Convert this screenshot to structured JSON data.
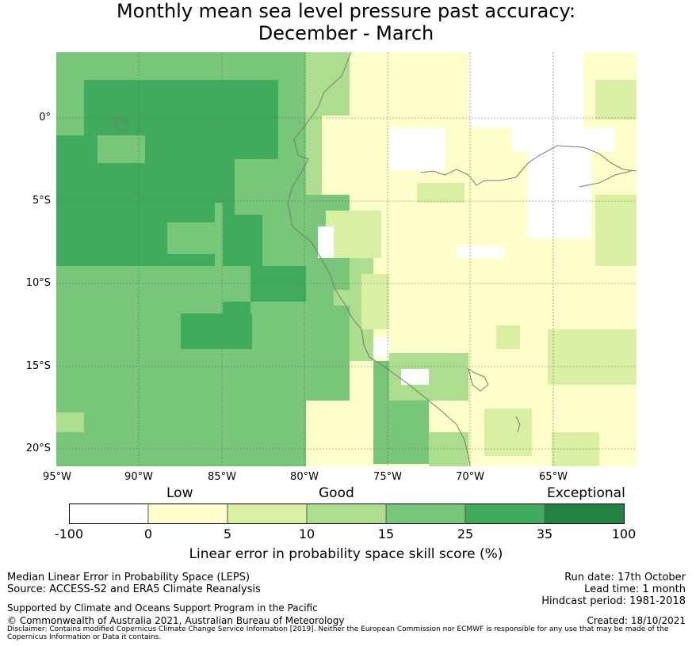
{
  "title": {
    "line1": "Monthly mean sea level pressure past accuracy:",
    "line2": "December - March"
  },
  "map": {
    "lat_labels": [
      "0°",
      "5°S",
      "10°S",
      "15°S",
      "20°S"
    ],
    "lat_values": [
      0,
      -5,
      -10,
      -15,
      -20
    ],
    "lon_labels": [
      "95°W",
      "90°W",
      "85°W",
      "80°W",
      "75°W",
      "70°W",
      "65°W"
    ],
    "lon_values": [
      -95,
      -90,
      -85,
      -80,
      -75,
      -70,
      -65
    ],
    "extent": {
      "lon_min": -95,
      "lon_max": -60,
      "lat_min": -21,
      "lat_max": 4
    }
  },
  "legend": {
    "categories": [
      "Low",
      "Good",
      "Exceptional"
    ],
    "ticks": [
      "-100",
      "0",
      "5",
      "10",
      "15",
      "25",
      "35",
      "100"
    ],
    "colors": [
      "#ffffff",
      "#ffffcc",
      "#d9f0a3",
      "#addd8e",
      "#78c679",
      "#41ab5d",
      "#238443"
    ],
    "title": "Linear error in probability space skill score (%)"
  },
  "footer": {
    "left1": "Median Linear Error in Probability Space (LEPS)",
    "left2": "Source: ACCESS-S2 and ERA5 Climate Reanalysis",
    "support": "Supported by Climate and Oceans Support Program in the Pacific",
    "copyright": "© Commonwealth of Australia 2021, Australian Bureau of Meteorology",
    "disclaimer1": "Disclaimer: Contains modified Copernicus Climate Change Service Information [2019]. Neither the European Commission nor ECMWF is responsible for any use that may be made of the",
    "disclaimer2": "Copernicus Information or Data it contains.",
    "run_date": "Run date: 17th October",
    "lead_time": "Lead time: 1 month",
    "hindcast": "Hindcast period: 1981-2018",
    "created": "Created: 18/10/2021"
  }
}
